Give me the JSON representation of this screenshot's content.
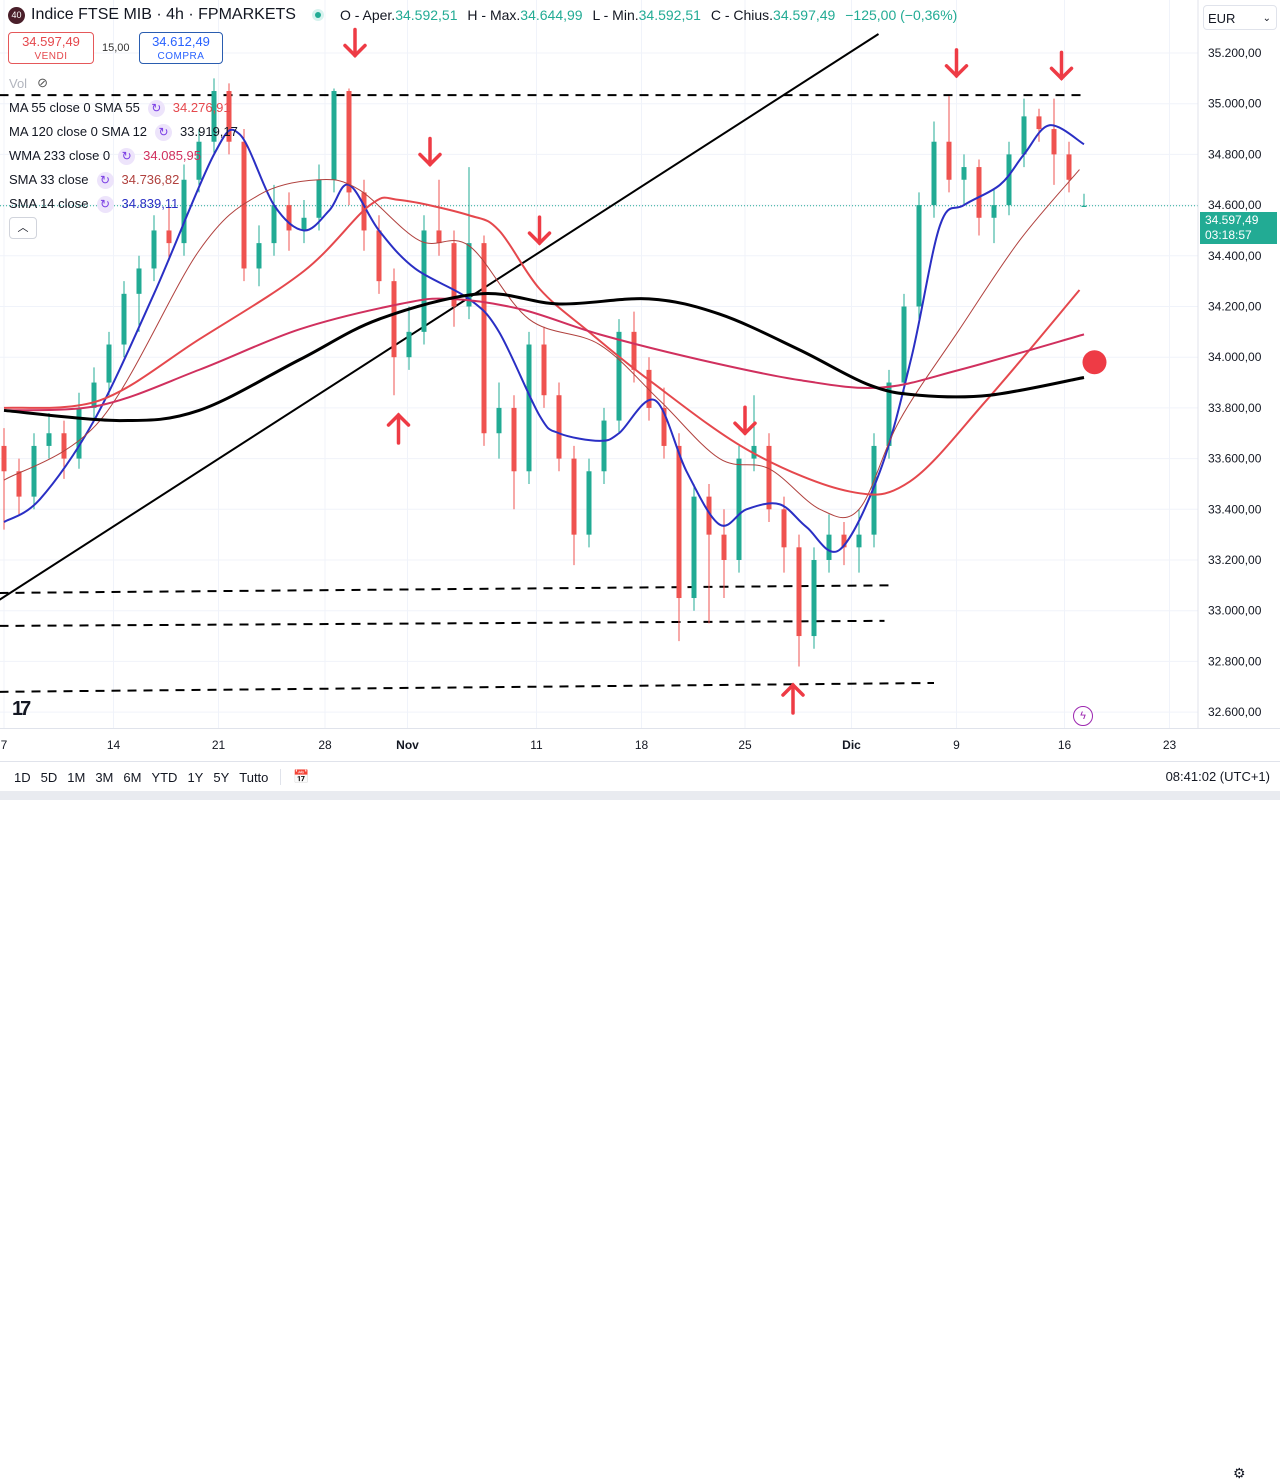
{
  "header": {
    "badge": "40",
    "title": "Indice FTSE MIB · 4h · FPMARKETS",
    "open_label": "O - Aper.",
    "open": "34.592,51",
    "high_label": "H - Max.",
    "high": "34.644,99",
    "low_label": "L - Min.",
    "low": "34.592,51",
    "close_label": "C - Chius.",
    "close": "34.597,49",
    "change": "−125,00 (−0,36%)"
  },
  "trade": {
    "sell_price": "34.597,49",
    "sell_label": "VENDI",
    "spread": "15,00",
    "buy_price": "34.612,49",
    "buy_label": "COMPRA"
  },
  "volume_label": "Vol",
  "indicators": [
    {
      "label": "MA 55 close 0 SMA 55",
      "value": "34.276,91",
      "color": "#e5484d"
    },
    {
      "label": "MA 120 close 0 SMA 12",
      "value": "33.919,17",
      "color": "#131722"
    },
    {
      "label": "WMA 233 close 0",
      "value": "34.085,95",
      "color": "#d0305e"
    },
    {
      "label": "SMA 33 close",
      "value": "34.736,82",
      "color": "#b0413e"
    },
    {
      "label": "SMA 14 close",
      "value": "34.839,11",
      "color": "#2a2fc4"
    }
  ],
  "currency": "EUR",
  "current_price": {
    "price": "34.597,49",
    "countdown": "03:18:57"
  },
  "ranges": [
    "1D",
    "5D",
    "1M",
    "3M",
    "6M",
    "YTD",
    "1Y",
    "5Y",
    "Tutto"
  ],
  "clock": "08:41:02 (UTC+1)",
  "colors": {
    "up": "#22ab94",
    "down": "#ef5350"
  },
  "chart_data": {
    "type": "candlestick",
    "title": "Indice FTSE MIB · 4h · FPMARKETS",
    "ylim": [
      32550,
      35300
    ],
    "y_ticks": [
      "35.200,00",
      "35.000,00",
      "34.800,00",
      "34.600,00",
      "34.400,00",
      "34.200,00",
      "34.000,00",
      "33.800,00",
      "33.600,00",
      "33.400,00",
      "33.200,00",
      "33.000,00",
      "32.800,00",
      "32.600,00"
    ],
    "y_tick_values": [
      35200,
      35000,
      34800,
      34600,
      34400,
      34200,
      34000,
      33800,
      33600,
      33400,
      33200,
      33000,
      32800,
      32600
    ],
    "x_ticks": [
      {
        "label": "7",
        "index": 0
      },
      {
        "label": "14",
        "index": 7.3
      },
      {
        "label": "21",
        "index": 14.3
      },
      {
        "label": "28",
        "index": 21.4
      },
      {
        "label": "Nov",
        "index": 26.9,
        "bold": true
      },
      {
        "label": "11",
        "index": 35.5
      },
      {
        "label": "18",
        "index": 42.5
      },
      {
        "label": "25",
        "index": 49.4
      },
      {
        "label": "Dic",
        "index": 56.5,
        "bold": true
      },
      {
        "label": "9",
        "index": 63.5
      },
      {
        "label": "16",
        "index": 70.7
      },
      {
        "label": "23",
        "index": 77.7
      }
    ],
    "candles": [
      [
        33650,
        33720,
        33320,
        33550
      ],
      [
        33550,
        33600,
        33380,
        33450
      ],
      [
        33450,
        33700,
        33400,
        33650
      ],
      [
        33650,
        33780,
        33600,
        33700
      ],
      [
        33700,
        33750,
        33520,
        33600
      ],
      [
        33600,
        33860,
        33560,
        33800
      ],
      [
        33800,
        33960,
        33750,
        33900
      ],
      [
        33900,
        34100,
        33850,
        34050
      ],
      [
        34050,
        34300,
        34000,
        34250
      ],
      [
        34250,
        34400,
        34100,
        34350
      ],
      [
        34350,
        34560,
        34300,
        34500
      ],
      [
        34500,
        34600,
        34380,
        34450
      ],
      [
        34450,
        34760,
        34400,
        34700
      ],
      [
        34700,
        34900,
        34650,
        34850
      ],
      [
        34850,
        35100,
        34800,
        35050
      ],
      [
        35050,
        35080,
        34800,
        34850
      ],
      [
        34850,
        34900,
        34300,
        34350
      ],
      [
        34350,
        34520,
        34280,
        34450
      ],
      [
        34450,
        34680,
        34400,
        34600
      ],
      [
        34600,
        34650,
        34420,
        34500
      ],
      [
        34500,
        34620,
        34450,
        34550
      ],
      [
        34550,
        34760,
        34500,
        34700
      ],
      [
        34700,
        35060,
        34650,
        35050
      ],
      [
        35050,
        35060,
        34600,
        34650
      ],
      [
        34650,
        34700,
        34420,
        34500
      ],
      [
        34500,
        34560,
        34250,
        34300
      ],
      [
        34300,
        34350,
        33850,
        34000
      ],
      [
        34000,
        34200,
        33950,
        34100
      ],
      [
        34100,
        34560,
        34050,
        34500
      ],
      [
        34500,
        34700,
        34400,
        34450
      ],
      [
        34450,
        34500,
        34120,
        34200
      ],
      [
        34200,
        34750,
        34150,
        34450
      ],
      [
        34450,
        34480,
        33650,
        33700
      ],
      [
        33700,
        33900,
        33600,
        33800
      ],
      [
        33800,
        33850,
        33400,
        33550
      ],
      [
        33550,
        34100,
        33500,
        34050
      ],
      [
        34050,
        34120,
        33800,
        33850
      ],
      [
        33850,
        33900,
        33550,
        33600
      ],
      [
        33600,
        33650,
        33180,
        33300
      ],
      [
        33300,
        33600,
        33250,
        33550
      ],
      [
        33550,
        33800,
        33500,
        33750
      ],
      [
        33750,
        34150,
        33700,
        34100
      ],
      [
        34100,
        34180,
        33900,
        33950
      ],
      [
        33950,
        34000,
        33750,
        33800
      ],
      [
        33800,
        33880,
        33600,
        33650
      ],
      [
        33650,
        33700,
        32880,
        33050
      ],
      [
        33050,
        33500,
        33000,
        33450
      ],
      [
        33450,
        33500,
        32950,
        33300
      ],
      [
        33300,
        33400,
        33050,
        33200
      ],
      [
        33200,
        33650,
        33150,
        33600
      ],
      [
        33600,
        33850,
        33550,
        33650
      ],
      [
        33650,
        33700,
        33350,
        33400
      ],
      [
        33400,
        33450,
        33150,
        33250
      ],
      [
        33250,
        33300,
        32780,
        32900
      ],
      [
        32900,
        33250,
        32850,
        33200
      ],
      [
        33200,
        33380,
        33150,
        33300
      ],
      [
        33300,
        33350,
        33180,
        33250
      ],
      [
        33250,
        33400,
        33150,
        33300
      ],
      [
        33300,
        33700,
        33250,
        33650
      ],
      [
        33650,
        33950,
        33600,
        33900
      ],
      [
        33900,
        34250,
        33850,
        34200
      ],
      [
        34200,
        34650,
        34150,
        34600
      ],
      [
        34600,
        34930,
        34550,
        34850
      ],
      [
        34850,
        35030,
        34650,
        34700
      ],
      [
        34700,
        34800,
        34600,
        34750
      ],
      [
        34750,
        34780,
        34480,
        34550
      ],
      [
        34550,
        34660,
        34450,
        34600
      ],
      [
        34600,
        34850,
        34560,
        34800
      ],
      [
        34800,
        35020,
        34750,
        34950
      ],
      [
        34950,
        34980,
        34850,
        34900
      ],
      [
        34900,
        35020,
        34680,
        34800
      ],
      [
        34800,
        34850,
        34650,
        34700
      ],
      [
        34592.51,
        34644.99,
        34592.51,
        34597.49
      ]
    ],
    "series": [
      {
        "name": "SMA 14",
        "color": "#2a2fc4",
        "width": 2,
        "points": [
          [
            0,
            33350
          ],
          [
            2.4,
            33440
          ],
          [
            6,
            33750
          ],
          [
            10,
            34250
          ],
          [
            14,
            34800
          ],
          [
            15.7,
            34880
          ],
          [
            18,
            34600
          ],
          [
            20,
            34500
          ],
          [
            21.7,
            34580
          ],
          [
            23,
            34680
          ],
          [
            25,
            34500
          ],
          [
            27.4,
            34350
          ],
          [
            31,
            34230
          ],
          [
            33,
            34100
          ],
          [
            35.7,
            33770
          ],
          [
            37,
            33700
          ],
          [
            39.7,
            33670
          ],
          [
            41,
            33700
          ],
          [
            43.4,
            33830
          ],
          [
            45.5,
            33550
          ],
          [
            47.7,
            33340
          ],
          [
            49.5,
            33400
          ],
          [
            51.7,
            33420
          ],
          [
            53.5,
            33330
          ],
          [
            55.7,
            33240
          ],
          [
            58.4,
            33550
          ],
          [
            60.5,
            34000
          ],
          [
            62.4,
            34520
          ],
          [
            64,
            34600
          ],
          [
            66.4,
            34680
          ],
          [
            68,
            34800
          ],
          [
            69.7,
            34915
          ],
          [
            72,
            34840
          ]
        ]
      },
      {
        "name": "SMA 33",
        "color": "#b0413e",
        "width": 1,
        "points": [
          [
            0,
            33515
          ],
          [
            6.4,
            33750
          ],
          [
            13,
            34420
          ],
          [
            17,
            34640
          ],
          [
            21,
            34700
          ],
          [
            23.7,
            34660
          ],
          [
            27.7,
            34460
          ],
          [
            31,
            34440
          ],
          [
            35,
            34150
          ],
          [
            39.7,
            34050
          ],
          [
            43.7,
            33830
          ],
          [
            47.7,
            33600
          ],
          [
            51,
            33560
          ],
          [
            54.4,
            33400
          ],
          [
            57,
            33400
          ],
          [
            59.7,
            33750
          ],
          [
            63.7,
            34110
          ],
          [
            67.7,
            34460
          ],
          [
            71.7,
            34740
          ]
        ]
      },
      {
        "name": "MA 55",
        "color": "#e5484d",
        "width": 2,
        "points": [
          [
            0,
            33800
          ],
          [
            6.4,
            33830
          ],
          [
            13,
            34070
          ],
          [
            20,
            34340
          ],
          [
            24.4,
            34600
          ],
          [
            26.4,
            34620
          ],
          [
            31,
            34560
          ],
          [
            33,
            34500
          ],
          [
            35.7,
            34270
          ],
          [
            39,
            34100
          ],
          [
            43,
            33910
          ],
          [
            49.7,
            33630
          ],
          [
            56.4,
            33470
          ],
          [
            60.4,
            33510
          ],
          [
            65.5,
            33830
          ],
          [
            71.7,
            34265
          ]
        ]
      },
      {
        "name": "WMA 233",
        "color": "#d0305e",
        "width": 2,
        "points": [
          [
            0,
            33790
          ],
          [
            6.4,
            33810
          ],
          [
            13,
            33950
          ],
          [
            19.7,
            34110
          ],
          [
            26.4,
            34210
          ],
          [
            29.7,
            34230
          ],
          [
            34.4,
            34190
          ],
          [
            39.7,
            34090
          ],
          [
            46.4,
            33990
          ],
          [
            53,
            33910
          ],
          [
            58.4,
            33880
          ],
          [
            63.7,
            33950
          ],
          [
            72,
            34090
          ]
        ]
      },
      {
        "name": "MA 120",
        "color": "#000000",
        "width": 3,
        "points": [
          [
            0,
            33790
          ],
          [
            7.7,
            33750
          ],
          [
            13,
            33790
          ],
          [
            19.7,
            33990
          ],
          [
            25,
            34150
          ],
          [
            31.7,
            34250
          ],
          [
            37,
            34210
          ],
          [
            43,
            34230
          ],
          [
            47.7,
            34170
          ],
          [
            53,
            34030
          ],
          [
            57.7,
            33890
          ],
          [
            61,
            33850
          ],
          [
            65.7,
            33850
          ],
          [
            72,
            33920
          ]
        ]
      }
    ],
    "annotations": {
      "horizontal_dashed": [
        [
          [
            -0.3,
            35034
          ],
          [
            72,
            35034
          ]
        ],
        [
          [
            -0.3,
            33070
          ],
          [
            59,
            33100
          ]
        ],
        [
          [
            -0.3,
            32940
          ],
          [
            58.7,
            32960
          ]
        ],
        [
          [
            -0.3,
            32680
          ],
          [
            62,
            32715
          ]
        ]
      ],
      "trendline": [
        [
          -0.3,
          33043
        ],
        [
          58.3,
          35275
        ]
      ],
      "down_arrows": [
        [
          23.4,
          35190
        ],
        [
          28.4,
          34760
        ],
        [
          35.7,
          34450
        ],
        [
          49.4,
          33700
        ],
        [
          63.5,
          35110
        ],
        [
          70.5,
          35100
        ]
      ],
      "up_arrows": [
        [
          26.3,
          33772
        ],
        [
          52.6,
          32707
        ]
      ],
      "marker": [
        72.7,
        33980
      ]
    }
  }
}
